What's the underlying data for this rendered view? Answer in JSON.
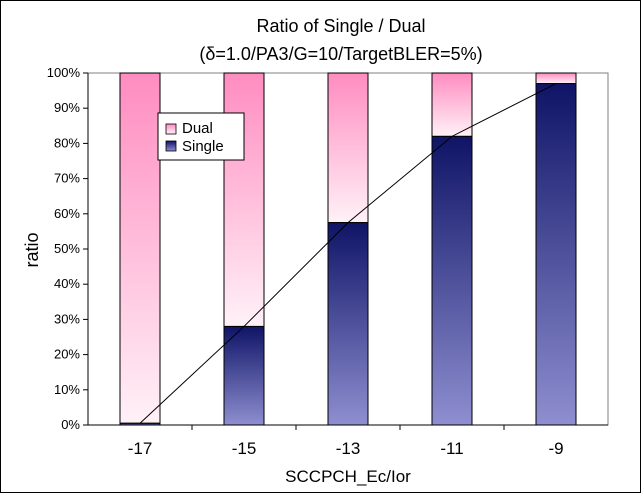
{
  "chart_data": {
    "type": "bar",
    "stacked": true,
    "title": "Ratio of Single / Dual",
    "subtitle": "(δ=1.0/PA3/G=10/TargetBLER=5%)",
    "xlabel": "SCCPCH_Ec/Ior",
    "ylabel": "ratio",
    "categories": [
      "-17",
      "-15",
      "-13",
      "-11",
      "-9"
    ],
    "y_ticks": [
      "0%",
      "10%",
      "20%",
      "30%",
      "40%",
      "50%",
      "60%",
      "70%",
      "80%",
      "90%",
      "100%"
    ],
    "ylim": [
      0,
      100
    ],
    "series": [
      {
        "name": "Single",
        "values": [
          0.5,
          28,
          57.5,
          82,
          97
        ]
      },
      {
        "name": "Dual",
        "values": [
          99.5,
          72,
          42.5,
          18,
          3
        ]
      }
    ],
    "trend_line": {
      "series": "Single",
      "values": [
        0.5,
        28,
        57.5,
        82,
        97
      ]
    },
    "legend_order": [
      "Dual",
      "Single"
    ],
    "legend_position": "upper-left inside plot",
    "grid": false,
    "colors": {
      "single_dark": "#0f1466",
      "single_light": "#8e8ed0",
      "dual_dark": "#ff8cc0",
      "dual_light": "#fff1f7",
      "plot_border": "#808080"
    }
  }
}
